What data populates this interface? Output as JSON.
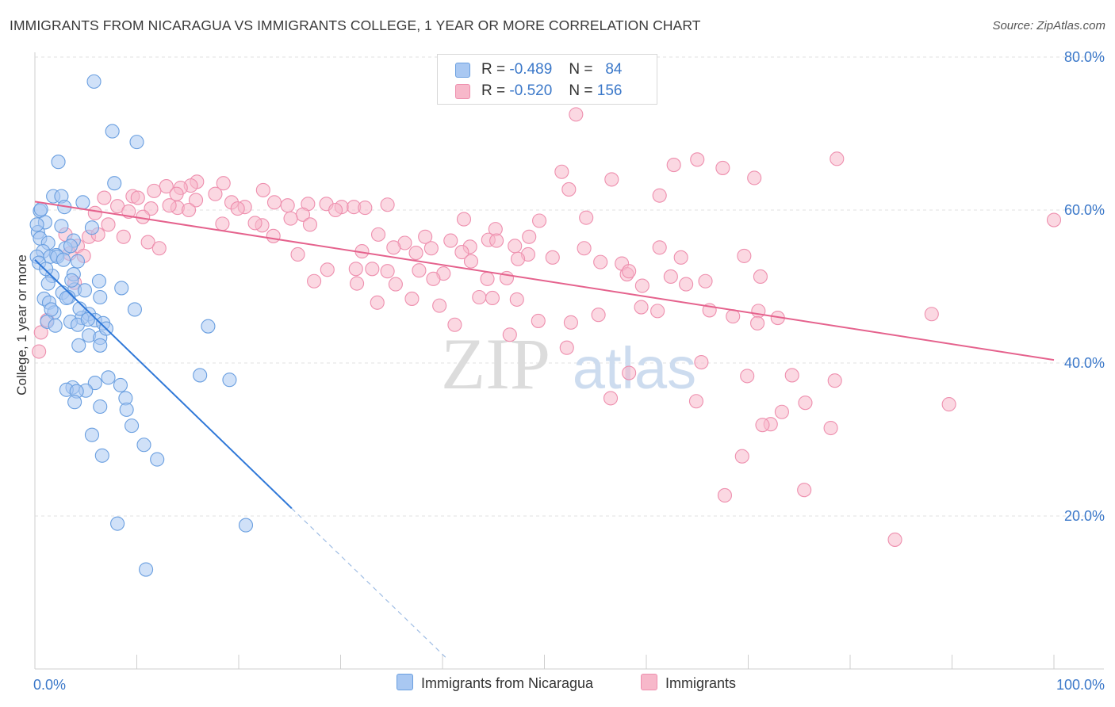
{
  "header": {
    "title": "IMMIGRANTS FROM NICARAGUA VS IMMIGRANTS COLLEGE, 1 YEAR OR MORE CORRELATION CHART",
    "source": "Source: ZipAtlas.com"
  },
  "legend": {
    "r_label": "R =",
    "n_label": "N =",
    "rows": [
      {
        "r": "-0.489",
        "n": "84",
        "color": "#a9c8f2"
      },
      {
        "r": "-0.520",
        "n": "156",
        "color": "#f7b8ca"
      }
    ]
  },
  "bottom_legend": [
    {
      "label": "Immigrants from Nicaragua",
      "color": "#a9c8f2"
    },
    {
      "label": "Immigrants",
      "color": "#f7b8ca"
    }
  ],
  "watermark": {
    "zip": "ZIP",
    "atlas": "atlas"
  },
  "chart_data": {
    "type": "scatter",
    "title": "IMMIGRANTS FROM NICARAGUA VS IMMIGRANTS COLLEGE, 1 YEAR OR MORE CORRELATION CHART",
    "xlabel": "",
    "ylabel": "College, 1 year or more",
    "xlim": [
      0,
      100
    ],
    "ylim": [
      0,
      80
    ],
    "x_tick_labels": [
      "0.0%",
      "100.0%"
    ],
    "y_ticks": [
      20,
      40,
      60,
      80
    ],
    "y_tick_labels": [
      "20.0%",
      "40.0%",
      "60.0%",
      "80.0%"
    ],
    "grid": true,
    "colors": {
      "blue": "#6a9fe0",
      "pink": "#ee8fae",
      "blue_line": "#2f78d8",
      "pink_line": "#e5628d",
      "axis_text": "#3b78c9"
    },
    "series": [
      {
        "name": "Immigrants from Nicaragua",
        "color": "#a9c8f2",
        "r": -0.489,
        "n": 84,
        "trend": {
          "x0": 0,
          "y0": 53.5,
          "x1": 25.2,
          "y1": 21.0,
          "dash_to_x": 40.3
        },
        "points": [
          [
            5.8,
            76.8
          ],
          [
            7.6,
            70.3
          ],
          [
            10.0,
            68.9
          ],
          [
            2.3,
            66.3
          ],
          [
            7.8,
            63.5
          ],
          [
            1.8,
            61.8
          ],
          [
            2.6,
            61.8
          ],
          [
            4.7,
            61.0
          ],
          [
            2.9,
            60.4
          ],
          [
            0.5,
            59.9
          ],
          [
            1.0,
            58.4
          ],
          [
            0.3,
            57.1
          ],
          [
            2.6,
            57.9
          ],
          [
            5.6,
            57.7
          ],
          [
            0.5,
            56.3
          ],
          [
            1.3,
            55.7
          ],
          [
            3.8,
            56.0
          ],
          [
            3.0,
            55.0
          ],
          [
            0.8,
            54.6
          ],
          [
            2.1,
            54.1
          ],
          [
            3.5,
            55.3
          ],
          [
            0.2,
            53.9
          ],
          [
            1.5,
            53.9
          ],
          [
            0.4,
            53.1
          ],
          [
            4.2,
            53.3
          ],
          [
            1.7,
            51.4
          ],
          [
            3.8,
            51.6
          ],
          [
            6.3,
            50.7
          ],
          [
            1.3,
            50.4
          ],
          [
            3.9,
            49.6
          ],
          [
            8.5,
            49.8
          ],
          [
            2.7,
            49.2
          ],
          [
            4.9,
            49.5
          ],
          [
            0.9,
            48.4
          ],
          [
            3.3,
            48.6
          ],
          [
            6.4,
            48.6
          ],
          [
            1.4,
            47.9
          ],
          [
            9.8,
            47.0
          ],
          [
            1.9,
            46.6
          ],
          [
            5.3,
            46.4
          ],
          [
            4.6,
            45.9
          ],
          [
            1.2,
            45.4
          ],
          [
            5.9,
            45.6
          ],
          [
            3.5,
            45.4
          ],
          [
            6.7,
            45.2
          ],
          [
            4.2,
            45.0
          ],
          [
            2.0,
            44.9
          ],
          [
            17.0,
            44.8
          ],
          [
            5.3,
            43.6
          ],
          [
            6.4,
            43.3
          ],
          [
            4.3,
            42.3
          ],
          [
            6.4,
            42.3
          ],
          [
            16.2,
            38.4
          ],
          [
            7.2,
            38.1
          ],
          [
            19.1,
            37.8
          ],
          [
            5.9,
            37.4
          ],
          [
            8.4,
            37.1
          ],
          [
            3.7,
            36.8
          ],
          [
            3.1,
            36.5
          ],
          [
            5.0,
            36.4
          ],
          [
            4.1,
            36.3
          ],
          [
            8.9,
            35.4
          ],
          [
            3.9,
            34.9
          ],
          [
            6.4,
            34.3
          ],
          [
            9.0,
            33.9
          ],
          [
            9.5,
            31.8
          ],
          [
            5.6,
            30.6
          ],
          [
            10.7,
            29.3
          ],
          [
            6.6,
            27.9
          ],
          [
            12.0,
            27.4
          ],
          [
            8.1,
            19.0
          ],
          [
            20.7,
            18.8
          ],
          [
            10.9,
            13.0
          ],
          [
            0.2,
            58.1
          ],
          [
            1.1,
            52.3
          ],
          [
            2.2,
            53.9
          ],
          [
            3.1,
            48.5
          ],
          [
            4.4,
            47.1
          ],
          [
            5.2,
            45.7
          ],
          [
            1.6,
            47.0
          ],
          [
            0.6,
            60.1
          ],
          [
            2.8,
            53.5
          ],
          [
            7.0,
            44.5
          ],
          [
            3.6,
            50.8
          ]
        ]
      },
      {
        "name": "Immigrants",
        "color": "#f7b8ca",
        "r": -0.52,
        "n": 156,
        "trend": {
          "x0": 0,
          "y0": 61.1,
          "x1": 100,
          "y1": 40.4
        },
        "points": [
          [
            53.1,
            72.5
          ],
          [
            78.7,
            66.7
          ],
          [
            62.7,
            65.9
          ],
          [
            65.0,
            66.6
          ],
          [
            67.5,
            65.5
          ],
          [
            51.7,
            65.0
          ],
          [
            56.6,
            64.0
          ],
          [
            70.6,
            64.2
          ],
          [
            15.9,
            63.7
          ],
          [
            18.5,
            63.5
          ],
          [
            15.3,
            63.2
          ],
          [
            12.9,
            63.1
          ],
          [
            14.3,
            62.9
          ],
          [
            11.7,
            62.5
          ],
          [
            13.9,
            62.1
          ],
          [
            17.7,
            62.1
          ],
          [
            22.4,
            62.6
          ],
          [
            9.6,
            61.8
          ],
          [
            6.8,
            61.6
          ],
          [
            10.1,
            61.6
          ],
          [
            52.4,
            62.7
          ],
          [
            61.3,
            61.9
          ],
          [
            15.8,
            61.3
          ],
          [
            19.3,
            61.0
          ],
          [
            23.5,
            61.0
          ],
          [
            26.8,
            60.8
          ],
          [
            28.6,
            60.8
          ],
          [
            34.6,
            60.7
          ],
          [
            8.1,
            60.5
          ],
          [
            14.0,
            60.3
          ],
          [
            20.6,
            60.4
          ],
          [
            24.8,
            60.6
          ],
          [
            30.1,
            60.4
          ],
          [
            31.3,
            60.4
          ],
          [
            32.4,
            60.3
          ],
          [
            11.4,
            60.2
          ],
          [
            15.1,
            60.0
          ],
          [
            29.5,
            60.0
          ],
          [
            5.9,
            59.6
          ],
          [
            10.6,
            59.1
          ],
          [
            26.3,
            59.4
          ],
          [
            42.1,
            58.8
          ],
          [
            49.5,
            58.6
          ],
          [
            54.1,
            59.0
          ],
          [
            100.0,
            58.7
          ],
          [
            7.2,
            58.1
          ],
          [
            18.4,
            58.2
          ],
          [
            22.3,
            58.0
          ],
          [
            27.0,
            58.1
          ],
          [
            45.2,
            57.5
          ],
          [
            23.4,
            56.6
          ],
          [
            33.7,
            56.8
          ],
          [
            48.5,
            56.5
          ],
          [
            40.8,
            56.0
          ],
          [
            38.3,
            56.5
          ],
          [
            3.0,
            56.8
          ],
          [
            5.3,
            56.5
          ],
          [
            8.7,
            56.5
          ],
          [
            44.5,
            56.1
          ],
          [
            45.3,
            56.0
          ],
          [
            11.1,
            55.8
          ],
          [
            36.3,
            55.7
          ],
          [
            35.2,
            55.1
          ],
          [
            42.7,
            55.2
          ],
          [
            47.1,
            55.3
          ],
          [
            38.9,
            55.0
          ],
          [
            53.9,
            55.0
          ],
          [
            61.3,
            55.1
          ],
          [
            4.2,
            55.3
          ],
          [
            12.2,
            55.0
          ],
          [
            41.9,
            54.5
          ],
          [
            32.1,
            54.6
          ],
          [
            37.4,
            54.4
          ],
          [
            48.4,
            54.2
          ],
          [
            63.4,
            53.8
          ],
          [
            69.6,
            54.0
          ],
          [
            47.4,
            53.6
          ],
          [
            3.4,
            54.3
          ],
          [
            4.8,
            54.0
          ],
          [
            25.8,
            54.2
          ],
          [
            50.8,
            53.8
          ],
          [
            42.8,
            53.3
          ],
          [
            55.5,
            53.2
          ],
          [
            57.6,
            53.0
          ],
          [
            28.7,
            52.2
          ],
          [
            31.5,
            52.3
          ],
          [
            33.1,
            52.3
          ],
          [
            34.6,
            52.0
          ],
          [
            37.7,
            52.1
          ],
          [
            40.1,
            51.7
          ],
          [
            44.4,
            51.0
          ],
          [
            46.3,
            51.1
          ],
          [
            58.1,
            51.6
          ],
          [
            62.4,
            51.3
          ],
          [
            58.3,
            52.0
          ],
          [
            71.2,
            51.3
          ],
          [
            3.9,
            50.5
          ],
          [
            27.4,
            50.7
          ],
          [
            31.6,
            50.4
          ],
          [
            35.4,
            50.3
          ],
          [
            39.1,
            51.0
          ],
          [
            59.6,
            50.1
          ],
          [
            63.9,
            50.3
          ],
          [
            65.8,
            50.7
          ],
          [
            37.0,
            48.4
          ],
          [
            43.6,
            48.6
          ],
          [
            47.3,
            48.3
          ],
          [
            39.7,
            47.5
          ],
          [
            59.5,
            47.3
          ],
          [
            61.1,
            46.8
          ],
          [
            66.2,
            46.9
          ],
          [
            1.2,
            45.6
          ],
          [
            33.6,
            47.9
          ],
          [
            44.9,
            48.5
          ],
          [
            71.0,
            46.8
          ],
          [
            88.0,
            46.4
          ],
          [
            55.3,
            46.3
          ],
          [
            68.5,
            46.1
          ],
          [
            72.9,
            45.9
          ],
          [
            49.4,
            45.5
          ],
          [
            52.6,
            45.3
          ],
          [
            41.2,
            45.0
          ],
          [
            70.9,
            45.2
          ],
          [
            0.6,
            44.0
          ],
          [
            46.6,
            43.7
          ],
          [
            52.2,
            42.0
          ],
          [
            0.4,
            41.5
          ],
          [
            65.4,
            40.1
          ],
          [
            58.3,
            38.7
          ],
          [
            69.9,
            38.3
          ],
          [
            74.3,
            38.4
          ],
          [
            78.5,
            37.7
          ],
          [
            56.5,
            35.4
          ],
          [
            64.9,
            35.0
          ],
          [
            75.6,
            34.8
          ],
          [
            89.7,
            34.6
          ],
          [
            73.3,
            33.6
          ],
          [
            72.2,
            32.0
          ],
          [
            71.4,
            31.9
          ],
          [
            78.1,
            31.5
          ],
          [
            69.4,
            27.8
          ],
          [
            75.5,
            23.4
          ],
          [
            67.7,
            22.7
          ],
          [
            84.4,
            16.9
          ],
          [
            6.2,
            56.8
          ],
          [
            13.2,
            60.6
          ],
          [
            19.9,
            60.2
          ],
          [
            9.2,
            59.8
          ],
          [
            25.1,
            58.9
          ],
          [
            21.6,
            58.3
          ]
        ]
      }
    ]
  }
}
